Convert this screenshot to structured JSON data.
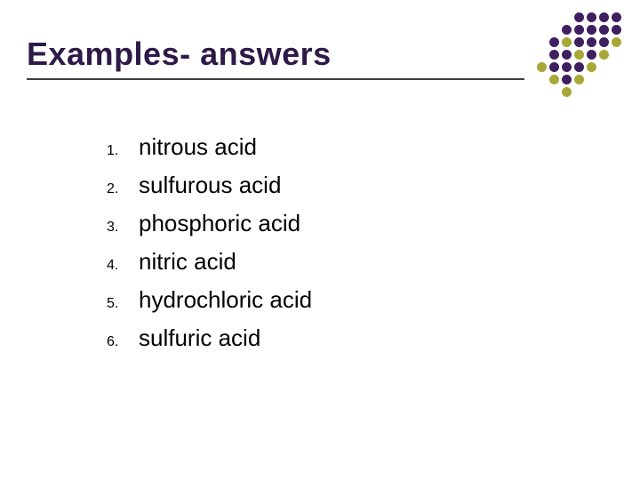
{
  "title": "Examples- answers",
  "title_color": "#2e1a47",
  "title_fontsize": 36,
  "underline_color": "#404040",
  "list_items": [
    "nitrous acid",
    "sulfurous acid",
    "phosphoric acid",
    "nitric acid",
    "hydrochloric acid",
    "sulfuric acid"
  ],
  "list_fontsize": 26,
  "number_fontsize": 16,
  "background_color": "#ffffff",
  "decor": {
    "rows": 7,
    "cols": 7,
    "dot_size": 11,
    "cell": 14,
    "colors": {
      "purple": "#3f1f5f",
      "olive": "#a8a838",
      "blank": ""
    },
    "pattern": [
      [
        "blank",
        "blank",
        "blank",
        "purple",
        "purple",
        "purple",
        "purple"
      ],
      [
        "blank",
        "blank",
        "purple",
        "purple",
        "purple",
        "purple",
        "purple"
      ],
      [
        "blank",
        "purple",
        "olive",
        "purple",
        "purple",
        "purple",
        "olive"
      ],
      [
        "blank",
        "purple",
        "purple",
        "olive",
        "purple",
        "olive",
        "blank"
      ],
      [
        "olive",
        "purple",
        "purple",
        "purple",
        "olive",
        "blank",
        "blank"
      ],
      [
        "blank",
        "olive",
        "purple",
        "olive",
        "blank",
        "blank",
        "blank"
      ],
      [
        "blank",
        "blank",
        "olive",
        "blank",
        "blank",
        "blank",
        "blank"
      ]
    ]
  }
}
